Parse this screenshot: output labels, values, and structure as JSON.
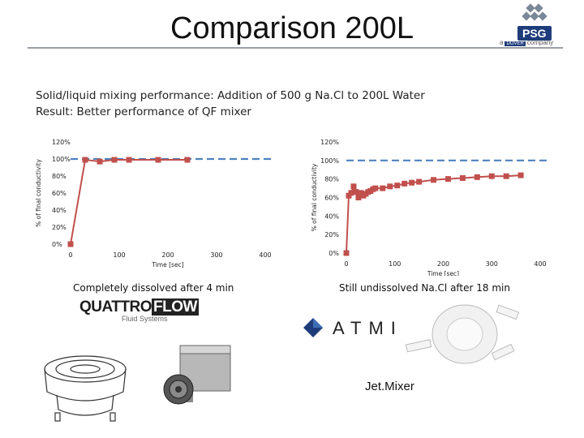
{
  "header": {
    "title": "Comparison 200L",
    "logo": {
      "mark": "PSG",
      "company_prefix": "a",
      "company_brand": "DOVER",
      "company_suffix": "company"
    }
  },
  "subtitle": {
    "line1": "Solid/liquid mixing performance: Addition of 500 g Na.Cl to 200L Water",
    "line2": "Result: Better performance of QF mixer"
  },
  "colors": {
    "series": "#c0504d",
    "reference": "#4f81bd"
  },
  "chart_data": [
    {
      "type": "line",
      "xlabel": "Time [sec]",
      "ylabel": "% of final conductivity",
      "xlim": [
        0,
        400
      ],
      "ylim": [
        0,
        120
      ],
      "x_ticks": [
        0,
        100,
        200,
        300,
        400
      ],
      "y_ticks": [
        "0%",
        "20%",
        "40%",
        "60%",
        "80%",
        "100%",
        "120%"
      ],
      "y_tick_values": [
        0,
        20,
        40,
        60,
        80,
        100,
        120
      ],
      "reference_line": 100,
      "grid": false,
      "series": [
        {
          "x": [
            0,
            30,
            60,
            90,
            120,
            180,
            240
          ],
          "y": [
            0,
            99,
            97,
            99,
            99,
            99,
            99
          ]
        }
      ],
      "caption": "Completely dissolved after 4 min"
    },
    {
      "type": "line",
      "xlabel": "Time [sec]",
      "ylabel": "% of final conductivity",
      "xlim": [
        0,
        400
      ],
      "ylim": [
        0,
        120
      ],
      "x_ticks": [
        0,
        100,
        200,
        300,
        400
      ],
      "y_ticks": [
        "0%",
        "20%",
        "40%",
        "60%",
        "80%",
        "100%",
        "120%"
      ],
      "y_tick_values": [
        0,
        20,
        40,
        60,
        80,
        100,
        120
      ],
      "reference_line": 100,
      "grid": false,
      "series": [
        {
          "x": [
            0,
            5,
            10,
            15,
            20,
            25,
            30,
            35,
            40,
            45,
            50,
            55,
            60,
            75,
            90,
            105,
            120,
            135,
            150,
            180,
            210,
            240,
            270,
            300,
            330,
            360
          ],
          "y": [
            0,
            62,
            65,
            72,
            66,
            60,
            65,
            62,
            64,
            66,
            67,
            69,
            70,
            70,
            72,
            73,
            75,
            76,
            77,
            79,
            80,
            81,
            82,
            83,
            83,
            84
          ]
        }
      ],
      "caption": "Still undissolved Na.Cl after 18 min"
    }
  ],
  "brands": {
    "quattroflow": {
      "part1": "QUATTRO",
      "part2": "FLOW",
      "tagline": "Fluid Systems"
    },
    "atmi": {
      "name": "ATMI",
      "product": "Jet.Mixer"
    }
  }
}
